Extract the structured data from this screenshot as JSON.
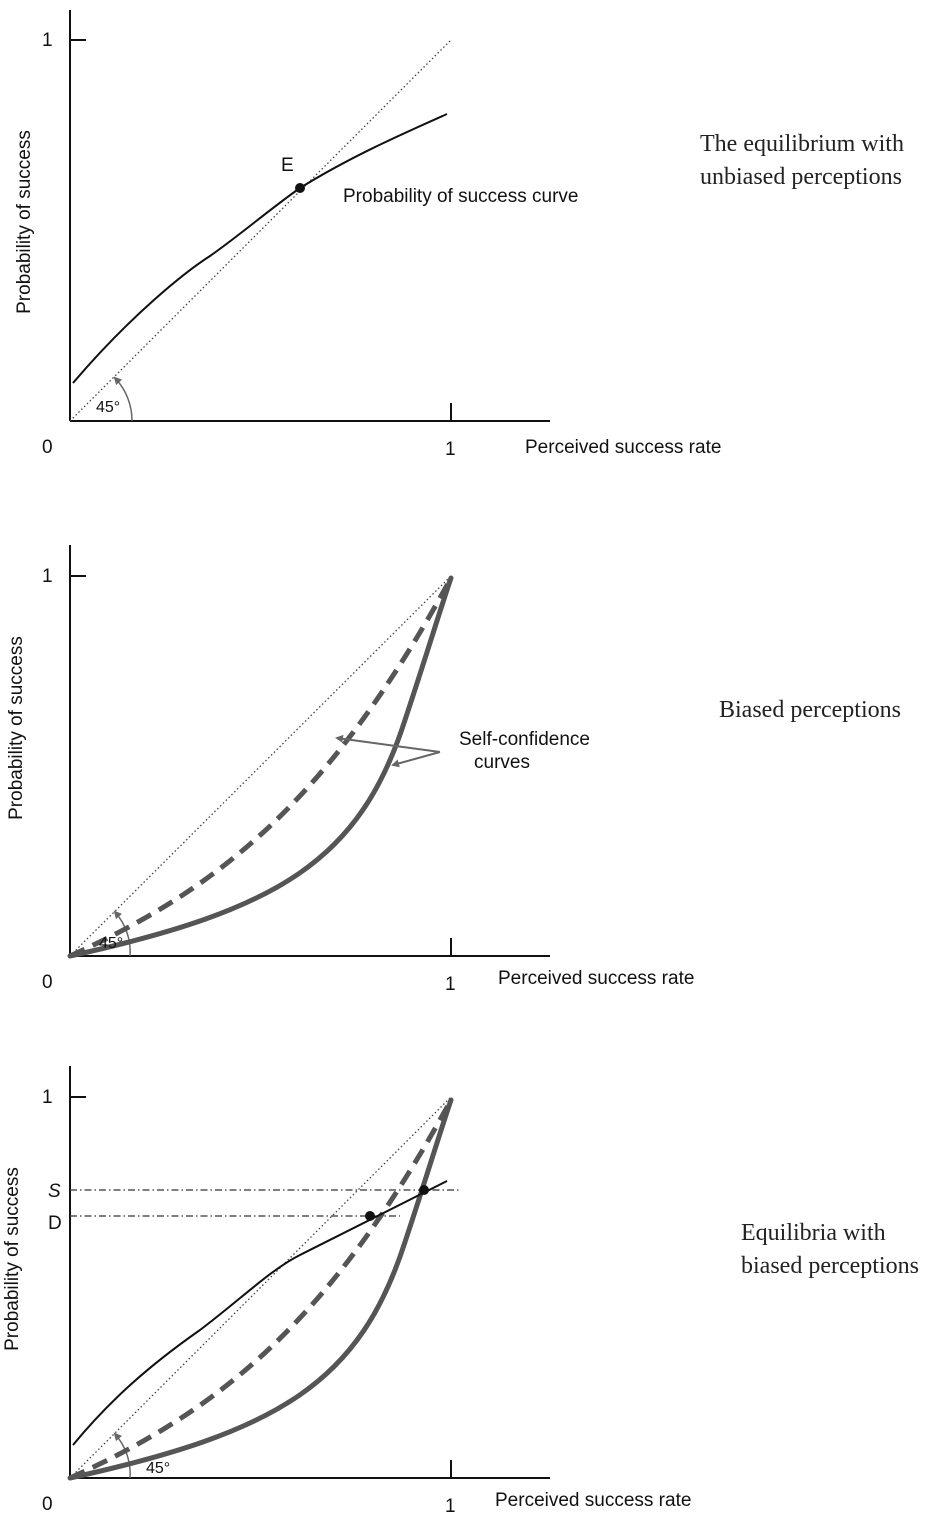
{
  "panels": [
    {
      "id": "unbiased",
      "ylabel": "Probability of success",
      "xlabel": "Perceived success rate",
      "origin_label": "0",
      "y_tick_label": "1",
      "x_tick_label": "1",
      "angle_label": "45°",
      "point_label": "E",
      "curve_label": "Probability of success curve",
      "caption_lines": [
        "The equilibrium with",
        "unbiased perceptions"
      ]
    },
    {
      "id": "biased",
      "ylabel": "Probability of success",
      "xlabel": "Perceived success rate",
      "origin_label": "0",
      "y_tick_label": "1",
      "x_tick_label": "1",
      "angle_label": "45°",
      "curve_label_lines": [
        "Self-confidence",
        "curves"
      ],
      "caption_lines": [
        "Biased perceptions"
      ]
    },
    {
      "id": "equilibria",
      "ylabel": "Probability of success",
      "xlabel": "Perceived success rate",
      "origin_label": "0",
      "y_tick_label": "1",
      "x_tick_label": "1",
      "angle_label": "45°",
      "level_labels": [
        "S",
        "D"
      ],
      "caption_lines": [
        "Equilibria with",
        "biased perceptions"
      ]
    }
  ],
  "colors": {
    "axes": "#111111",
    "curves": "#555555",
    "background": "#ffffff"
  }
}
